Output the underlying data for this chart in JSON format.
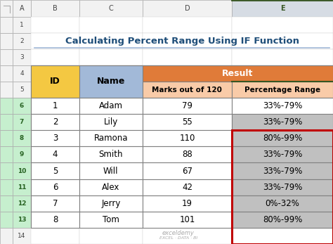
{
  "title": "Calculating Percent Range Using IF Function",
  "title_color": "#1F4E79",
  "title_fontsize": 9.5,
  "rows": [
    [
      "1",
      "Adam",
      "79",
      "33%-79%"
    ],
    [
      "2",
      "Lily",
      "55",
      "33%-79%"
    ],
    [
      "3",
      "Ramona",
      "110",
      "80%-99%"
    ],
    [
      "4",
      "Smith",
      "88",
      "33%-79%"
    ],
    [
      "5",
      "Will",
      "67",
      "33%-79%"
    ],
    [
      "6",
      "Alex",
      "42",
      "33%-79%"
    ],
    [
      "7",
      "Jerry",
      "19",
      "0%-32%"
    ],
    [
      "8",
      "Tom",
      "101",
      "80%-99%"
    ]
  ],
  "id_header_bg": "#F4C842",
  "name_header_bg": "#A2B9D8",
  "result_header_bg": "#E07B39",
  "marks_header_bg": "#F9CBA8",
  "pct_header_bg": "#F9CBA8",
  "data_bg_white": "#FFFFFF",
  "data_bg_gray": "#C0C0C0",
  "highlight_border_color": "#C00000",
  "excel_col_header_bg": "#F2F2F2",
  "col_E_header_bg": "#D6DCE4",
  "row_num_selected_bg": "#C6EFCE",
  "row_num_normal_bg": "#F2F2F2",
  "row_num_selected_color": "#276221",
  "col_E_top_border": "#375623",
  "watermark_line1": "exceldemy",
  "watermark_line2": "EXCEL · DATA · BI"
}
